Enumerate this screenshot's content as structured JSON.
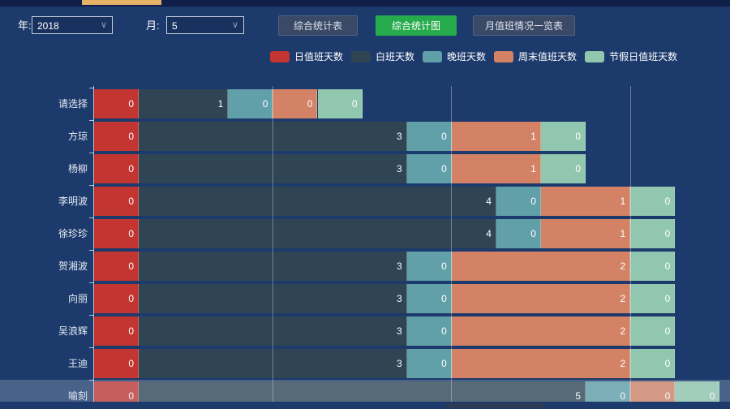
{
  "header": {
    "year_label": "年:",
    "year_value": "2018",
    "month_label": "月:",
    "month_value": "5",
    "buttons": [
      {
        "label": "综合统计表",
        "style": "dark"
      },
      {
        "label": "综合统计图",
        "style": "green",
        "active": true
      },
      {
        "label": "月值班情况一览表",
        "style": "dark"
      }
    ]
  },
  "colors": {
    "background": "#1c3a6b",
    "top_strip": "#101f48",
    "top_tab_accent": "#e7b168",
    "active_button_green": "#25ab4b",
    "series_red": "#c23531",
    "series_dark": "#2f4554",
    "series_teal": "#61a0a8",
    "series_salmon": "#d48265",
    "series_green": "#91c7ae"
  },
  "chart_data": {
    "type": "bar",
    "orientation": "horizontal",
    "stacked": true,
    "legend_position": "top",
    "grid": true,
    "value_labels": "inside-right",
    "highlighted_category": "喻刻",
    "categories": [
      "请选择",
      "方琼",
      "杨柳",
      "李明波",
      "徐珍珍",
      "贺湘波",
      "向丽",
      "吴浪辉",
      "王迪",
      "喻刻"
    ],
    "series": [
      {
        "name": "日值班天数",
        "color": "#c23531",
        "values": [
          0,
          0,
          0,
          0,
          0,
          0,
          0,
          0,
          0,
          0
        ]
      },
      {
        "name": "白班天数",
        "color": "#2f4554",
        "values": [
          1,
          3,
          3,
          4,
          4,
          3,
          3,
          3,
          3,
          5
        ]
      },
      {
        "name": "晚班天数",
        "color": "#61a0a8",
        "values": [
          0,
          0,
          0,
          0,
          0,
          0,
          0,
          0,
          0,
          0
        ]
      },
      {
        "name": "周末值班天数",
        "color": "#d48265",
        "values": [
          0,
          1,
          1,
          1,
          1,
          2,
          2,
          2,
          2,
          0
        ]
      },
      {
        "name": "节假日值班天数",
        "color": "#91c7ae",
        "values": [
          0,
          0,
          0,
          0,
          0,
          0,
          0,
          0,
          0,
          0
        ]
      }
    ]
  }
}
